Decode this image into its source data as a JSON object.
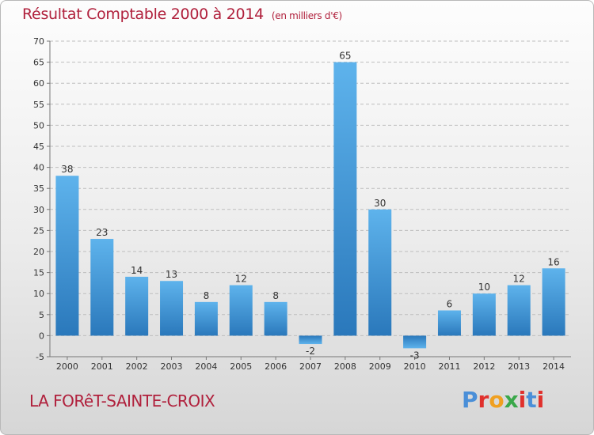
{
  "chart_data": {
    "type": "bar",
    "title": "Résultat Comptable 2000 à 2014",
    "unit": "(en milliers d'€)",
    "categories": [
      "2000",
      "2001",
      "2002",
      "2003",
      "2004",
      "2005",
      "2006",
      "2007",
      "2008",
      "2009",
      "2010",
      "2011",
      "2012",
      "2013",
      "2014"
    ],
    "values": [
      38,
      23,
      14,
      13,
      8,
      12,
      8,
      -2,
      65,
      30,
      -3,
      6,
      10,
      12,
      16
    ],
    "ylim": [
      -5,
      70
    ],
    "yticks": [
      -5,
      0,
      5,
      10,
      15,
      20,
      25,
      30,
      35,
      40,
      45,
      50,
      55,
      60,
      65,
      70
    ],
    "grid": true,
    "bar_color": "#3f95d6"
  },
  "footer": {
    "town": "LA FORêT-SAINTE-CROIX",
    "logo_text": "Proxiti"
  },
  "logo_colors": [
    "#4a8fd8",
    "#e0302c",
    "#f0a020",
    "#3aa84a",
    "#e0302c",
    "#4a8fd8",
    "#e0302c"
  ]
}
